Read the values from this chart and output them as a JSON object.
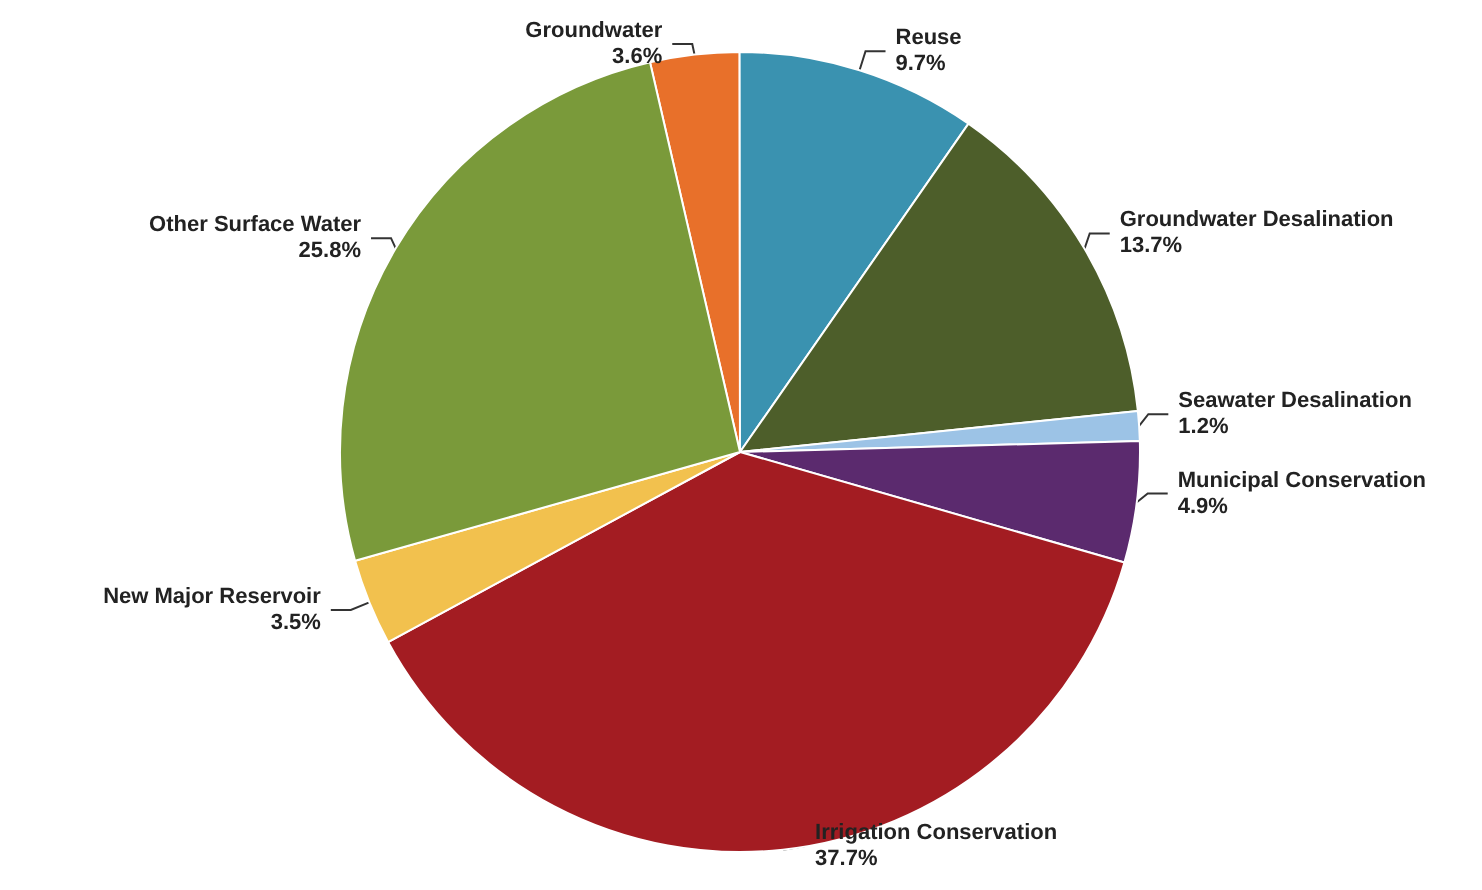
{
  "chart_data": {
    "type": "pie",
    "categories": [
      "Groundwater",
      "Reuse",
      "Groundwater Desalination",
      "Seawater Desalination",
      "Municipal Conservation",
      "Irrigation Conservation",
      "New Major Reservoir",
      "Other Surface Water"
    ],
    "values": [
      3.6,
      9.7,
      13.7,
      1.2,
      4.9,
      37.7,
      3.5,
      25.8
    ],
    "value_labels": [
      "3.6%",
      "9.7%",
      "13.7%",
      "1.2%",
      "4.9%",
      "37.7%",
      "3.5%",
      "25.8%"
    ],
    "colors": [
      "#e8702a",
      "#3a92b0",
      "#4d5e2a",
      "#9cc3e6",
      "#5b2a6e",
      "#a31c22",
      "#f2c14e",
      "#7a9a3a"
    ],
    "legend": false
  }
}
